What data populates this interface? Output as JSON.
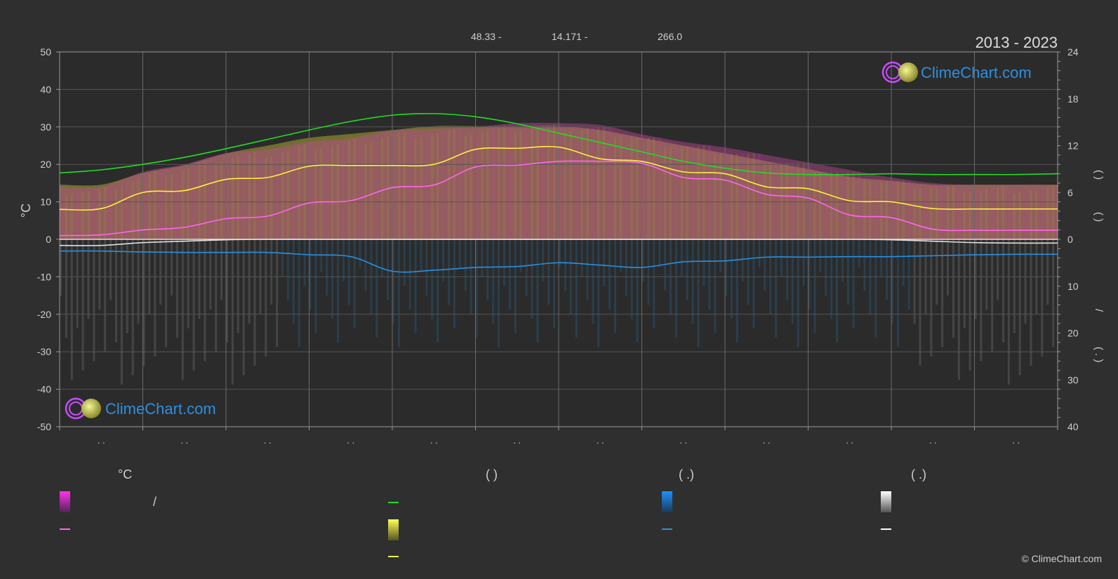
{
  "header": {
    "coord_lat": "48.33 -",
    "coord_lon": "14.171 -",
    "elevation": "266.0",
    "period": "2013 - 2023"
  },
  "brand": {
    "name": "ClimeChart.com",
    "copyright": "© ClimeChart.com",
    "colors": {
      "ring": "#c94cff",
      "sun": "#e3e37a",
      "text": "#2d8fe0"
    }
  },
  "legend": {
    "col1_header": "°C",
    "col2_header": "(          )",
    "col3_header": "(   .)",
    "col4_header": "(   .)",
    "col1_item1_label": "/"
  },
  "colors": {
    "background": "#2f2f2f",
    "grid": "#555555",
    "max_temp_line": "#ffee44",
    "mean_temp_line": "#ff66ee",
    "daylight_line": "#22dd22",
    "rain_line": "#2a8fdf",
    "snow_line": "#e0e0e0",
    "temp_band": "#c0469a",
    "sunshine_band": "#a8a832",
    "rain_band": "#2b6fa0",
    "snow_band": "#888888"
  },
  "chart_data": {
    "type": "line",
    "period": "2013 - 2023",
    "x": [
      0,
      0.5,
      1,
      1.5,
      2,
      2.5,
      3,
      3.5,
      4,
      4.5,
      5,
      5.5,
      6,
      6.5,
      7,
      7.5,
      8,
      8.5,
      9,
      9.5,
      10,
      10.5,
      11,
      11.5,
      12
    ],
    "xlim": [
      0,
      12
    ],
    "month_tick_labels": [
      ". .",
      ". .",
      ". .",
      ". .",
      ". .",
      ". .",
      ". .",
      ". .",
      ". .",
      ". .",
      ". .",
      ". ."
    ],
    "left_axis": {
      "label": "°C",
      "ylim": [
        -50,
        50
      ],
      "ticks": [
        50,
        40,
        30,
        20,
        10,
        0,
        -10,
        -20,
        -30,
        -40,
        -50
      ]
    },
    "right_axis_hours": {
      "ylim": [
        0,
        24
      ],
      "ticks": [
        24,
        18,
        12,
        6,
        0
      ]
    },
    "right_axis_precip": {
      "ylim": [
        0,
        40
      ],
      "ticks": [
        0,
        10,
        20,
        30,
        40
      ]
    },
    "right_axis_label_parts": [
      "(   )",
      "(   )",
      "/",
      "(   .   )"
    ],
    "series": [
      {
        "key": "daylight_hours",
        "axis": "hours",
        "color": "#22dd22",
        "values": [
          8.5,
          8.9,
          9.6,
          10.5,
          11.6,
          12.8,
          14.0,
          15.1,
          15.9,
          16.1,
          15.7,
          14.8,
          13.6,
          12.4,
          11.2,
          10.0,
          9.1,
          8.5,
          8.3,
          8.3,
          8.4,
          8.3,
          8.3,
          8.3,
          8.4
        ]
      },
      {
        "key": "max_temp_avg",
        "axis": "temp",
        "color": "#ffee44",
        "values": [
          8,
          8.2,
          12.5,
          13,
          16,
          16.5,
          19.5,
          19.7,
          19.7,
          20.0,
          24.0,
          24.3,
          24.6,
          21.5,
          20.8,
          18.0,
          17.5,
          14.0,
          13.5,
          10.3,
          10.0,
          8.2,
          8.1,
          8.1,
          8.1
        ]
      },
      {
        "key": "mean_temp_avg",
        "axis": "temp",
        "color": "#ff66ee",
        "values": [
          1,
          1.2,
          2.5,
          3.2,
          5.5,
          6.2,
          9.7,
          10.3,
          13.8,
          14.5,
          19.3,
          19.8,
          20.8,
          20.8,
          20.3,
          16.5,
          15.8,
          12.0,
          11.0,
          6.5,
          5.8,
          2.7,
          2.4,
          2.4,
          2.4
        ]
      },
      {
        "key": "rain_mm",
        "axis": "precip",
        "color": "#2a8fdf",
        "values": [
          2.5,
          2.5,
          2.7,
          2.8,
          2.8,
          2.8,
          3.3,
          3.7,
          6.8,
          6.6,
          6.0,
          5.8,
          5.0,
          5.5,
          6.0,
          4.8,
          4.6,
          3.8,
          3.8,
          3.7,
          3.7,
          3.5,
          3.3,
          3.2,
          3.2
        ]
      },
      {
        "key": "snow_mm",
        "axis": "precip",
        "color": "#e0e0e0",
        "values": [
          1.3,
          1.3,
          0.7,
          0.4,
          0.1,
          0,
          0,
          0,
          0,
          0,
          0,
          0,
          0,
          0,
          0,
          0,
          0,
          0,
          0,
          0,
          0.1,
          0.4,
          0.7,
          0.8,
          0.8
        ]
      },
      {
        "key": "temp_range_top",
        "axis": "temp",
        "color": "#c0469a",
        "values": [
          14,
          14,
          18,
          20,
          23,
          24,
          26,
          27,
          29,
          29.5,
          30,
          31,
          31,
          30.5,
          28,
          26,
          24.5,
          22.5,
          20.5,
          18.5,
          16.5,
          15,
          14.5,
          14.5,
          14.5
        ]
      },
      {
        "key": "sunshine_band_top",
        "axis": "hours",
        "color": "#a8a832",
        "values": [
          7.0,
          7.0,
          8.5,
          9.5,
          11.0,
          12.0,
          13.0,
          13.5,
          14.0,
          14.5,
          14.5,
          14.5,
          14.5,
          14.0,
          13.0,
          12.0,
          11.0,
          10.0,
          9.0,
          8.0,
          7.5,
          7.0,
          7.0,
          7.0,
          7.0
        ]
      }
    ]
  }
}
